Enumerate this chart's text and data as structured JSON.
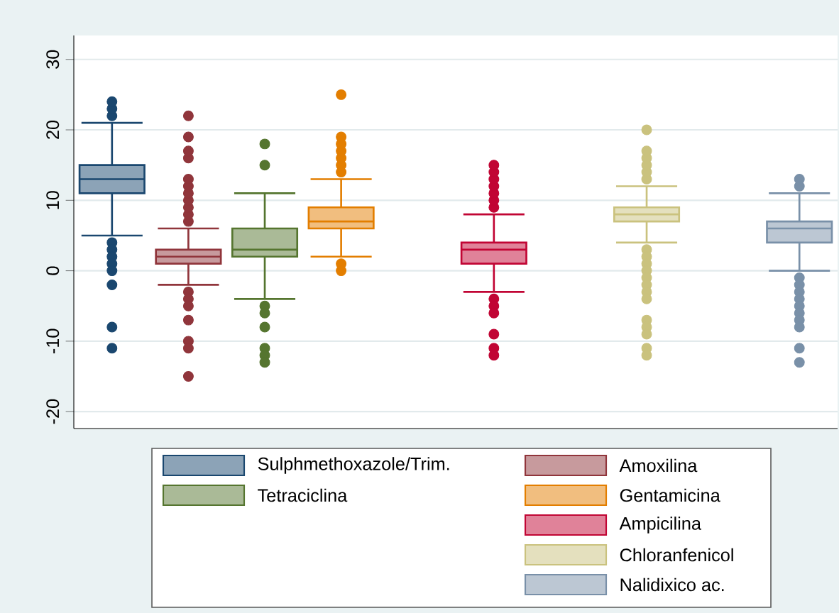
{
  "chart_data": {
    "type": "box",
    "categories": [
      null,
      null,
      null,
      null,
      null,
      null,
      null,
      null,
      null,
      null
    ],
    "ylim": [
      -22.4,
      33.4
    ],
    "yticks": [
      -20,
      -10,
      0,
      10,
      20,
      30
    ],
    "grid": "y",
    "legend": "bottom",
    "marker": "circle",
    "tick_labels": "y",
    "series": [
      {
        "name": "Sulphmethoxazole/Trim.",
        "color": "#1a476f",
        "boxes": [
          {
            "low": 5,
            "q1": 11,
            "median": 13,
            "q3": 15,
            "high": 21,
            "outliers": [
              22,
              23,
              24,
              4,
              3,
              2,
              1,
              0,
              -2,
              -8,
              -11
            ]
          },
          null,
          null,
          null,
          null,
          null,
          null,
          null,
          null,
          null
        ]
      },
      {
        "name": "Amoxilina",
        "color": "#90353b",
        "boxes": [
          null,
          {
            "low": -2,
            "q1": 1,
            "median": 2,
            "q3": 3,
            "high": 6,
            "outliers": [
              7,
              8,
              9,
              10,
              11,
              12,
              13,
              16,
              17,
              19,
              22,
              -3,
              -4,
              -5,
              -7,
              -10,
              -11,
              -15
            ]
          },
          null,
          null,
          null,
          null,
          null,
          null,
          null,
          null
        ]
      },
      {
        "name": "Tetraciclina",
        "color": "#55752f",
        "boxes": [
          null,
          null,
          {
            "low": -4,
            "q1": 2,
            "median": 3,
            "q3": 6,
            "high": 11,
            "outliers": [
              15,
              18,
              -5,
              -6,
              -8,
              -11,
              -12,
              -13
            ]
          },
          null,
          null,
          null,
          null,
          null,
          null,
          null
        ]
      },
      {
        "name": "Gentamicina",
        "color": "#e37e00",
        "boxes": [
          null,
          null,
          null,
          {
            "low": 2,
            "q1": 6,
            "median": 7,
            "q3": 9,
            "high": 13,
            "outliers": [
              14,
              15,
              16,
              17,
              18,
              19,
              25,
              1,
              0
            ]
          },
          null,
          null,
          null,
          null,
          null,
          null
        ]
      },
      {
        "name": "Ampicilina",
        "color": "#c10534",
        "boxes": [
          null,
          null,
          null,
          null,
          null,
          {
            "low": -3,
            "q1": 1,
            "median": 3,
            "q3": 4,
            "high": 8,
            "outliers": [
              9,
              10,
              11,
              12,
              13,
              14,
              15,
              -4,
              -5,
              -6,
              -9,
              -11,
              -12
            ]
          },
          null,
          null,
          null,
          null
        ]
      },
      {
        "name": "Chloranfenicol",
        "color": "#cac27e",
        "boxes": [
          null,
          null,
          null,
          null,
          null,
          null,
          null,
          {
            "low": 4,
            "q1": 7,
            "median": 8,
            "q3": 9,
            "high": 12,
            "outliers": [
              13,
              14,
              15,
              16,
              17,
              20,
              3,
              2,
              1,
              0,
              -1,
              -2,
              -3,
              -4,
              -7,
              -8,
              -9,
              -11,
              -12
            ]
          },
          null,
          null
        ]
      },
      {
        "name": "Nalidixico ac.",
        "color": "#7990a8",
        "boxes": [
          null,
          null,
          null,
          null,
          null,
          null,
          null,
          null,
          null,
          {
            "low": 0,
            "q1": 4,
            "median": 6,
            "q3": 7,
            "high": 11,
            "outliers": [
              12,
              13,
              -1,
              -2,
              -3,
              -4,
              -5,
              -6,
              -7,
              -8,
              -11,
              -13
            ]
          }
        ]
      }
    ]
  }
}
